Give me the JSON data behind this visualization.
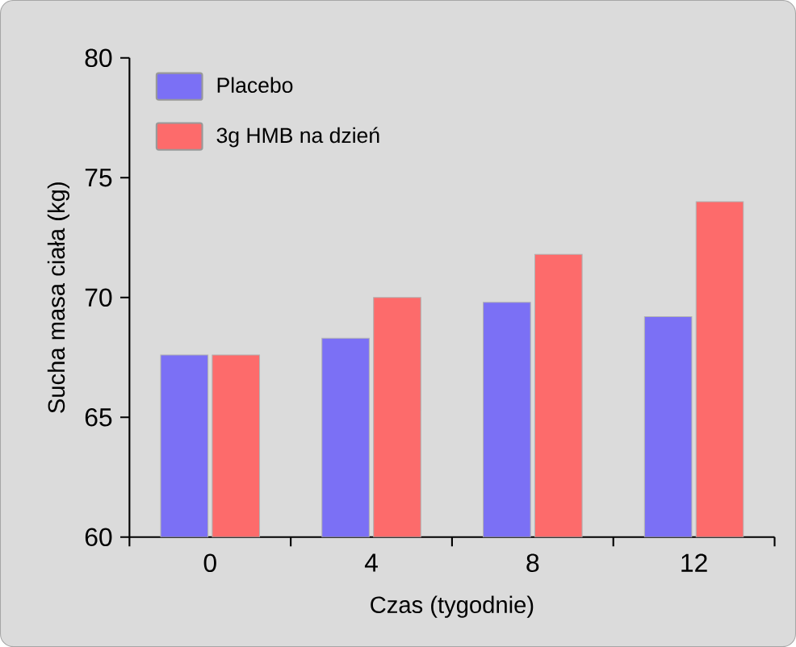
{
  "chart_data": {
    "type": "bar",
    "xlabel": "Czas (tygodnie)",
    "ylabel": "Sucha masa ciała (kg)",
    "categories": [
      "0",
      "4",
      "8",
      "12"
    ],
    "series": [
      {
        "name": "Placebo",
        "color": "#7b70f5",
        "values": [
          67.6,
          68.3,
          69.8,
          69.2
        ]
      },
      {
        "name": "3g HMB na dzień",
        "color": "#fd6b6b",
        "values": [
          67.6,
          70.0,
          71.8,
          74.0
        ]
      }
    ],
    "ylim": [
      60,
      80
    ],
    "yticks": [
      60,
      65,
      70,
      75,
      80
    ],
    "grid": false,
    "legend": "top left"
  }
}
